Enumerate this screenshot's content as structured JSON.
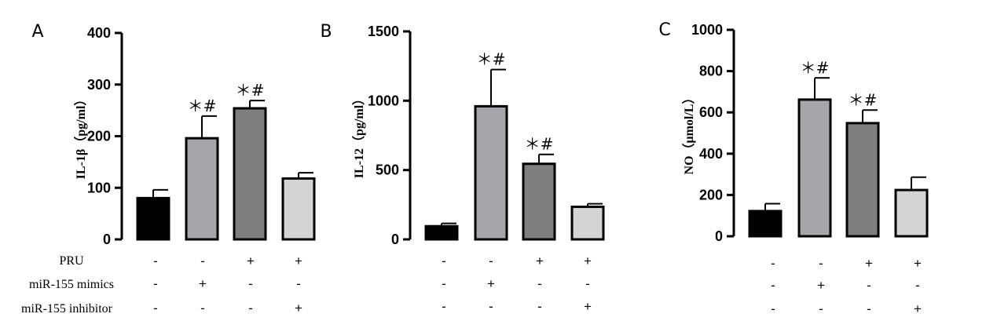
{
  "chart_data": [
    {
      "type": "bar",
      "panel": "A",
      "ylabel": "IL-1β（pg/ml）",
      "ylim": [
        0,
        400
      ],
      "yticks": [
        "0",
        "100",
        "200",
        "300",
        "400"
      ],
      "values": [
        80,
        196,
        254,
        118
      ],
      "errors": [
        16,
        43,
        15,
        11
      ],
      "annotations": [
        "",
        "＊#",
        "＊#",
        ""
      ],
      "colors": [
        "#000000",
        "#a5a5aa",
        "#7f7f80",
        "#d4d4d4"
      ]
    },
    {
      "type": "bar",
      "panel": "B",
      "ylabel": "IL-12（pg/ml）",
      "ylim": [
        0,
        1500
      ],
      "yticks": [
        "0",
        "500",
        "1000",
        "1500"
      ],
      "values": [
        95,
        960,
        545,
        235
      ],
      "errors": [
        20,
        265,
        68,
        22
      ],
      "annotations": [
        "",
        "＊#",
        "＊#",
        ""
      ],
      "colors": [
        "#000000",
        "#a5a5aa",
        "#7f7f80",
        "#d4d4d4"
      ]
    },
    {
      "type": "bar",
      "panel": "C",
      "ylabel": "NO（μmol/L）",
      "ylim": [
        0,
        1000
      ],
      "yticks": [
        "0",
        "200",
        "400",
        "600",
        "800",
        "1000"
      ],
      "values": [
        122,
        662,
        548,
        224
      ],
      "errors": [
        36,
        105,
        63,
        62
      ],
      "annotations": [
        "",
        "＊#",
        "＊#",
        ""
      ],
      "colors": [
        "#000000",
        "#a5a5aa",
        "#7f7f80",
        "#d4d4d4"
      ]
    }
  ],
  "conditions": {
    "labels": [
      "PRU",
      "miR-155 mimics",
      "miR-155 inhibitor"
    ],
    "rows": [
      [
        "-",
        "-",
        "+",
        "+"
      ],
      [
        "-",
        "+",
        "-",
        "-"
      ],
      [
        "-",
        "-",
        "-",
        "+"
      ]
    ]
  }
}
